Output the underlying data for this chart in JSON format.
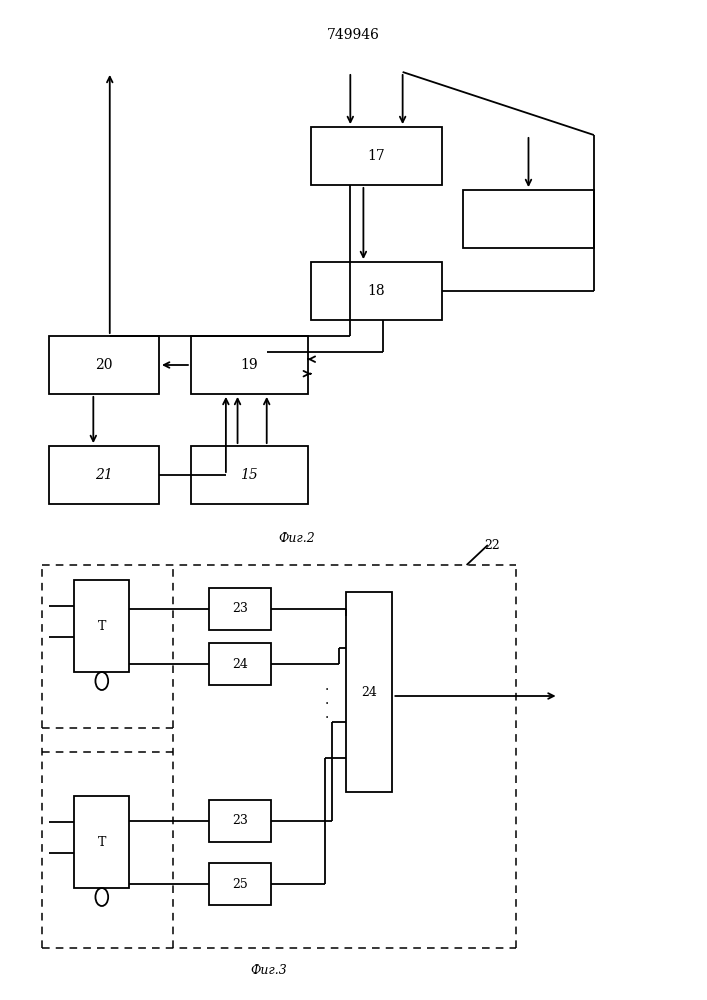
{
  "title": "749946",
  "fig2_label": "Фиг.2",
  "fig3_label": "Фиг.3",
  "bg_color": "#ffffff",
  "line_color": "#000000"
}
